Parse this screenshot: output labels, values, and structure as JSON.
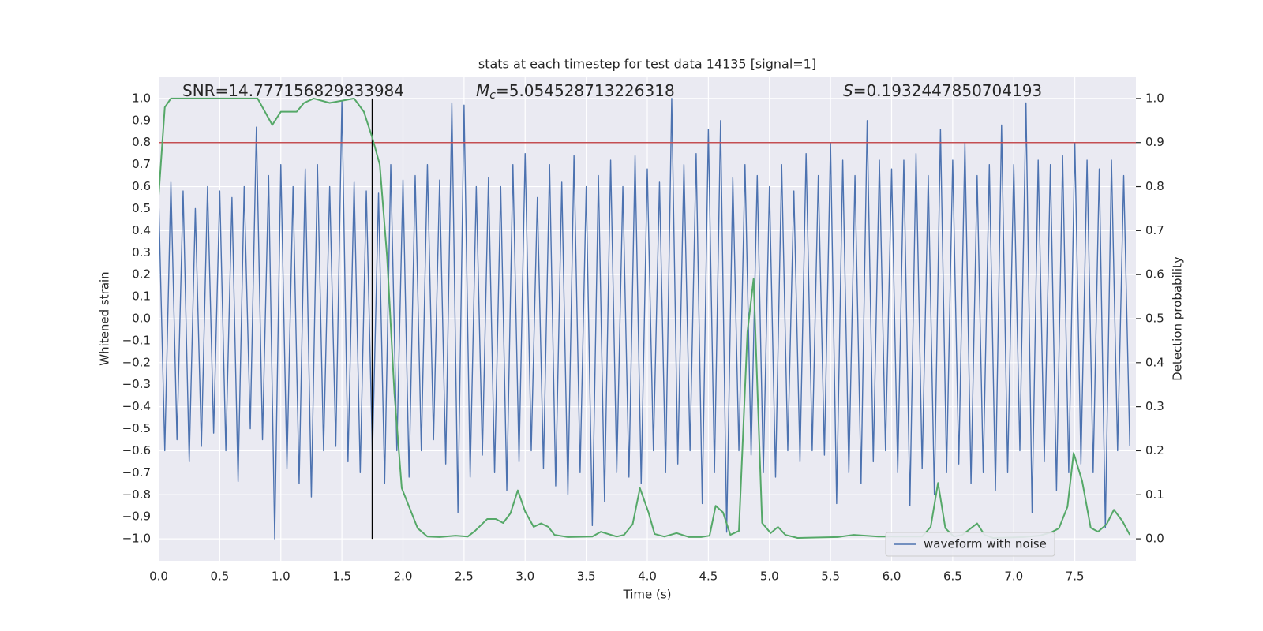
{
  "chart_data": {
    "type": "line",
    "title": "stats at each timestep for test data 14135 [signal=1]",
    "xlabel": "Time (s)",
    "ylabel": "Whitened strain",
    "y2label": "Detection probability",
    "annotations": [
      {
        "text": "SNR=14.777156829833984"
      },
      {
        "symbol": "M",
        "subscript": "c",
        "text": "=5.054528713226318"
      },
      {
        "symbol": "S",
        "text": "=0.1932447850704193"
      }
    ],
    "xlim": [
      0,
      8
    ],
    "ylim": [
      -1.1,
      1.1
    ],
    "y2lim": [
      -0.05,
      1.05
    ],
    "xticks": [
      {
        "value": 0,
        "label": "0.0"
      },
      {
        "value": 0.5,
        "label": "0.5"
      },
      {
        "value": 1,
        "label": "1.0"
      },
      {
        "value": 1.5,
        "label": "1.5"
      },
      {
        "value": 2,
        "label": "2.0"
      },
      {
        "value": 2.5,
        "label": "2.5"
      },
      {
        "value": 3,
        "label": "3.0"
      },
      {
        "value": 3.5,
        "label": "3.5"
      },
      {
        "value": 4,
        "label": "4.0"
      },
      {
        "value": 4.5,
        "label": "4.5"
      },
      {
        "value": 5,
        "label": "5.0"
      },
      {
        "value": 5.5,
        "label": "5.5"
      },
      {
        "value": 6,
        "label": "6.0"
      },
      {
        "value": 6.5,
        "label": "6.5"
      },
      {
        "value": 7,
        "label": "7.0"
      },
      {
        "value": 7.5,
        "label": "7.5"
      }
    ],
    "yticks": [
      {
        "value": -1,
        "label": "−1.0"
      },
      {
        "value": -0.9,
        "label": "−0.9"
      },
      {
        "value": -0.8,
        "label": "−0.8"
      },
      {
        "value": -0.7,
        "label": "−0.7"
      },
      {
        "value": -0.6,
        "label": "−0.6"
      },
      {
        "value": -0.5,
        "label": "−0.5"
      },
      {
        "value": -0.4,
        "label": "−0.4"
      },
      {
        "value": -0.3,
        "label": "−0.3"
      },
      {
        "value": -0.2,
        "label": "−0.2"
      },
      {
        "value": -0.1,
        "label": "−0.1"
      },
      {
        "value": 0,
        "label": "0.0"
      },
      {
        "value": 0.1,
        "label": "0.1"
      },
      {
        "value": 0.2,
        "label": "0.2"
      },
      {
        "value": 0.3,
        "label": "0.3"
      },
      {
        "value": 0.4,
        "label": "0.4"
      },
      {
        "value": 0.5,
        "label": "0.5"
      },
      {
        "value": 0.6,
        "label": "0.6"
      },
      {
        "value": 0.7,
        "label": "0.7"
      },
      {
        "value": 0.8,
        "label": "0.8"
      },
      {
        "value": 0.9,
        "label": "0.9"
      },
      {
        "value": 1,
        "label": "1.0"
      }
    ],
    "y2ticks": [
      {
        "value": 0,
        "label": "0.0"
      },
      {
        "value": 0.1,
        "label": "0.1"
      },
      {
        "value": 0.2,
        "label": "0.2"
      },
      {
        "value": 0.3,
        "label": "0.3"
      },
      {
        "value": 0.4,
        "label": "0.4"
      },
      {
        "value": 0.5,
        "label": "0.5"
      },
      {
        "value": 0.6,
        "label": "0.6"
      },
      {
        "value": 0.7,
        "label": "0.7"
      },
      {
        "value": 0.8,
        "label": "0.8"
      },
      {
        "value": 0.9,
        "label": "0.9"
      },
      {
        "value": 1,
        "label": "1.0"
      }
    ],
    "grid": true,
    "legend": "lower right",
    "hlines": [
      {
        "y": 0.8,
        "color": "#c44e52"
      }
    ],
    "vlines": [
      {
        "x": 1.75,
        "ymin": -1,
        "ymax": 1,
        "color": "#000000"
      }
    ],
    "series": [
      {
        "name": "waveform with noise",
        "color": "#4c72b0",
        "x": [
          0,
          0.05,
          0.1,
          0.15,
          0.2,
          0.25,
          0.3,
          0.35,
          0.4,
          0.45,
          0.5,
          0.55,
          0.6,
          0.65,
          0.7,
          0.75,
          0.8,
          0.85,
          0.9,
          0.95,
          1,
          1.05,
          1.1,
          1.15,
          1.2,
          1.25,
          1.3,
          1.35,
          1.4,
          1.45,
          1.5,
          1.55,
          1.6,
          1.65,
          1.7,
          1.75,
          1.8,
          1.85,
          1.9,
          1.95,
          2,
          2.05,
          2.1,
          2.15,
          2.2,
          2.25,
          2.3,
          2.35,
          2.4,
          2.45,
          2.5,
          2.55,
          2.6,
          2.65,
          2.7,
          2.75,
          2.8,
          2.85,
          2.9,
          2.95,
          3,
          3.05,
          3.1,
          3.15,
          3.2,
          3.25,
          3.3,
          3.35,
          3.4,
          3.45,
          3.5,
          3.55,
          3.6,
          3.65,
          3.7,
          3.75,
          3.8,
          3.85,
          3.9,
          3.95,
          4,
          4.05,
          4.1,
          4.15,
          4.2,
          4.25,
          4.3,
          4.35,
          4.4,
          4.45,
          4.5,
          4.55,
          4.6,
          4.65,
          4.7,
          4.75,
          4.8,
          4.85,
          4.9,
          4.95,
          5,
          5.05,
          5.1,
          5.15,
          5.2,
          5.25,
          5.3,
          5.35,
          5.4,
          5.45,
          5.5,
          5.55,
          5.6,
          5.65,
          5.7,
          5.75,
          5.8,
          5.85,
          5.9,
          5.95,
          6,
          6.05,
          6.1,
          6.15,
          6.2,
          6.25,
          6.3,
          6.35,
          6.4,
          6.45,
          6.5,
          6.55,
          6.6,
          6.65,
          6.7,
          6.75,
          6.8,
          6.85,
          6.9,
          6.95,
          7,
          7.05,
          7.1,
          7.15,
          7.2,
          7.25,
          7.3,
          7.35,
          7.4,
          7.45,
          7.5,
          7.55,
          7.6,
          7.65,
          7.7,
          7.75,
          7.8,
          7.85,
          7.9,
          7.95
        ],
        "values": [
          0.55,
          -0.6,
          0.62,
          -0.55,
          0.58,
          -0.65,
          0.5,
          -0.58,
          0.6,
          -0.52,
          0.58,
          -0.6,
          0.55,
          -0.74,
          0.6,
          -0.5,
          0.87,
          -0.55,
          0.65,
          -1.0,
          0.7,
          -0.68,
          0.6,
          -0.75,
          0.68,
          -0.81,
          0.7,
          -0.6,
          0.6,
          -0.58,
          0.99,
          -0.65,
          0.62,
          -0.7,
          0.58,
          -0.62,
          0.57,
          -0.75,
          0.7,
          -0.6,
          0.63,
          -0.72,
          0.65,
          -0.6,
          0.7,
          -0.55,
          0.63,
          -0.66,
          0.98,
          -0.88,
          0.97,
          -0.72,
          0.6,
          -0.62,
          0.64,
          -0.7,
          0.6,
          -0.78,
          0.7,
          -0.65,
          0.75,
          -0.6,
          0.55,
          -0.68,
          0.7,
          -0.76,
          0.62,
          -0.8,
          0.74,
          -0.7,
          0.6,
          -0.94,
          0.65,
          -0.83,
          0.72,
          -0.7,
          0.6,
          -0.72,
          0.74,
          -0.75,
          0.68,
          -0.6,
          0.62,
          -0.7,
          1.0,
          -0.66,
          0.7,
          -0.6,
          0.75,
          -0.84,
          0.86,
          -0.7,
          0.9,
          -0.97,
          0.64,
          -0.6,
          0.7,
          -0.62,
          0.65,
          -0.7,
          0.6,
          -0.72,
          0.7,
          -0.6,
          0.58,
          -0.65,
          0.75,
          -0.6,
          0.65,
          -0.62,
          0.8,
          -0.84,
          0.72,
          -0.7,
          0.65,
          -0.75,
          0.9,
          -0.65,
          0.72,
          -0.6,
          0.68,
          -0.7,
          0.72,
          -0.85,
          0.75,
          -0.68,
          0.65,
          -0.8,
          0.86,
          -0.7,
          0.72,
          -0.66,
          0.8,
          -0.75,
          0.65,
          -0.7,
          0.7,
          -0.78,
          0.88,
          -0.7,
          0.7,
          -0.6,
          0.98,
          -0.88,
          0.72,
          -0.65,
          0.7,
          -0.78,
          0.74,
          -0.7,
          0.8,
          -0.66,
          0.72,
          -0.7,
          0.68,
          -0.95,
          0.72,
          -0.6,
          0.65,
          -0.58
        ]
      },
      {
        "color": "#55a868",
        "axis": "y2",
        "x": [
          0,
          0.05,
          0.1,
          0.81,
          0.93,
          1.0,
          1.13,
          1.19,
          1.27,
          1.4,
          1.6,
          1.68,
          1.75,
          1.81,
          1.87,
          1.93,
          1.99,
          2.12,
          2.2,
          2.3,
          2.43,
          2.53,
          2.59,
          2.69,
          2.76,
          2.82,
          2.88,
          2.94,
          3.0,
          3.07,
          3.13,
          3.19,
          3.24,
          3.35,
          3.55,
          3.62,
          3.75,
          3.81,
          3.88,
          3.94,
          4.01,
          4.06,
          4.14,
          4.24,
          4.34,
          4.44,
          4.51,
          4.56,
          4.62,
          4.68,
          4.75,
          4.82,
          4.87,
          4.94,
          5.01,
          5.07,
          5.13,
          5.23,
          5.56,
          5.69,
          5.89,
          6.15,
          6.25,
          6.32,
          6.38,
          6.44,
          6.51,
          6.58,
          6.7,
          6.76,
          6.83,
          7.08,
          7.21,
          7.31,
          7.37,
          7.44,
          7.49,
          7.56,
          7.63,
          7.69,
          7.76,
          7.82,
          7.89,
          7.95
        ],
        "values": [
          0.78,
          0.98,
          1.0,
          1.0,
          0.94,
          0.97,
          0.97,
          0.99,
          1.0,
          0.99,
          1.0,
          0.97,
          0.91,
          0.85,
          0.64,
          0.33,
          0.115,
          0.024,
          0.005,
          0.004,
          0.007,
          0.005,
          0.018,
          0.045,
          0.045,
          0.036,
          0.058,
          0.11,
          0.062,
          0.027,
          0.035,
          0.027,
          0.009,
          0.004,
          0.005,
          0.016,
          0.005,
          0.009,
          0.033,
          0.115,
          0.06,
          0.011,
          0.005,
          0.013,
          0.004,
          0.004,
          0.007,
          0.075,
          0.06,
          0.009,
          0.018,
          0.47,
          0.59,
          0.036,
          0.013,
          0.027,
          0.009,
          0.002,
          0.004,
          0.009,
          0.005,
          0.005,
          0.005,
          0.027,
          0.127,
          0.024,
          0.005,
          0.009,
          0.035,
          0.009,
          0.002,
          0.004,
          0.007,
          0.015,
          0.024,
          0.073,
          0.195,
          0.131,
          0.025,
          0.016,
          0.033,
          0.066,
          0.04,
          0.009
        ]
      }
    ]
  }
}
